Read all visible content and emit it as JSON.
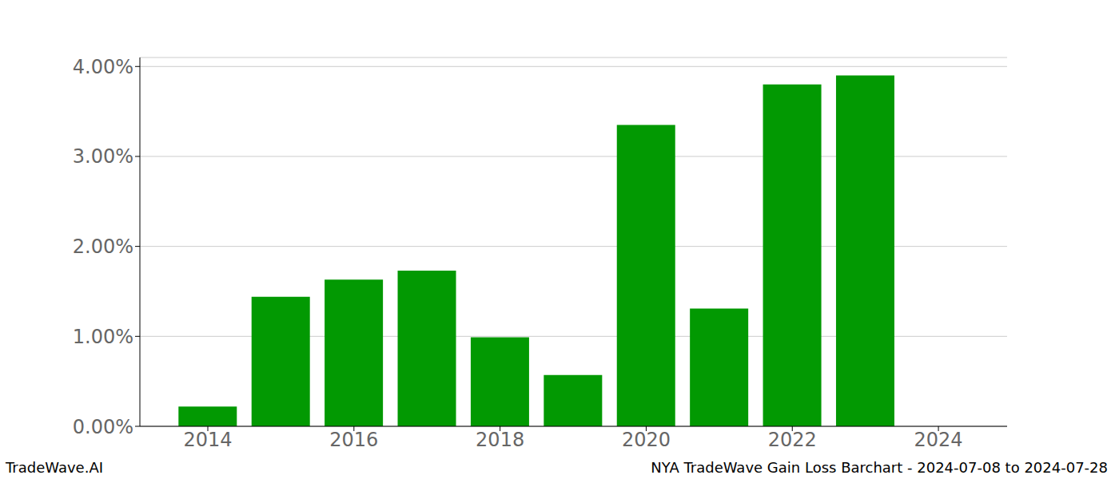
{
  "chart_data": {
    "type": "bar",
    "x": [
      2014,
      2015,
      2016,
      2017,
      2018,
      2019,
      2020,
      2021,
      2022,
      2023
    ],
    "values": [
      0.22,
      1.44,
      1.63,
      1.73,
      0.99,
      0.57,
      3.35,
      1.31,
      3.8,
      3.9
    ],
    "color": "#029902",
    "xlim": [
      2013.07,
      2024.94
    ],
    "xticks": [
      2014,
      2016,
      2018,
      2020,
      2022,
      2024
    ],
    "ylim": [
      0,
      4.1
    ],
    "yticks": [
      {
        "value": 0,
        "label": "0.00%"
      },
      {
        "value": 1,
        "label": "1.00%"
      },
      {
        "value": 2,
        "label": "2.00%"
      },
      {
        "value": 3,
        "label": "3.00%"
      },
      {
        "value": 4,
        "label": "4.00%"
      }
    ],
    "grid": true,
    "annotations": [
      "TradeWave.AI",
      "NYA TradeWave Gain Loss Barchart - 2024-07-08 to 2024-07-28"
    ]
  }
}
